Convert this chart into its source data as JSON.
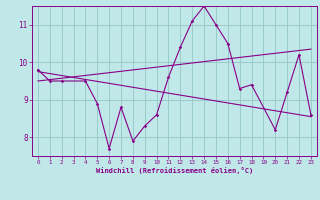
{
  "xlabel": "Windchill (Refroidissement éolien,°C)",
  "bg_color": "#c0e8e8",
  "line_color": "#880088",
  "grid_color": "#99cccc",
  "axis_color": "#880088",
  "label_color": "#880088",
  "xlim": [
    -0.5,
    23.5
  ],
  "ylim": [
    7.5,
    11.5
  ],
  "xticks": [
    0,
    1,
    2,
    3,
    4,
    5,
    6,
    7,
    8,
    9,
    10,
    11,
    12,
    13,
    14,
    15,
    16,
    17,
    18,
    19,
    20,
    21,
    22,
    23
  ],
  "yticks": [
    8,
    9,
    10,
    11
  ],
  "hours": [
    0,
    1,
    2,
    4,
    5,
    6,
    7,
    8,
    9,
    10,
    11,
    12,
    13,
    14,
    15,
    16,
    17,
    18,
    20,
    21,
    22,
    23
  ],
  "windchill": [
    9.8,
    9.5,
    9.5,
    9.5,
    8.9,
    7.7,
    8.8,
    7.9,
    8.3,
    8.6,
    9.6,
    10.4,
    11.1,
    11.5,
    11.0,
    10.5,
    9.3,
    9.4,
    8.2,
    9.2,
    10.2,
    8.6
  ],
  "trend1_x": [
    0,
    23
  ],
  "trend1_y": [
    9.75,
    8.55
  ],
  "trend2_x": [
    0,
    23
  ],
  "trend2_y": [
    9.5,
    10.35
  ]
}
